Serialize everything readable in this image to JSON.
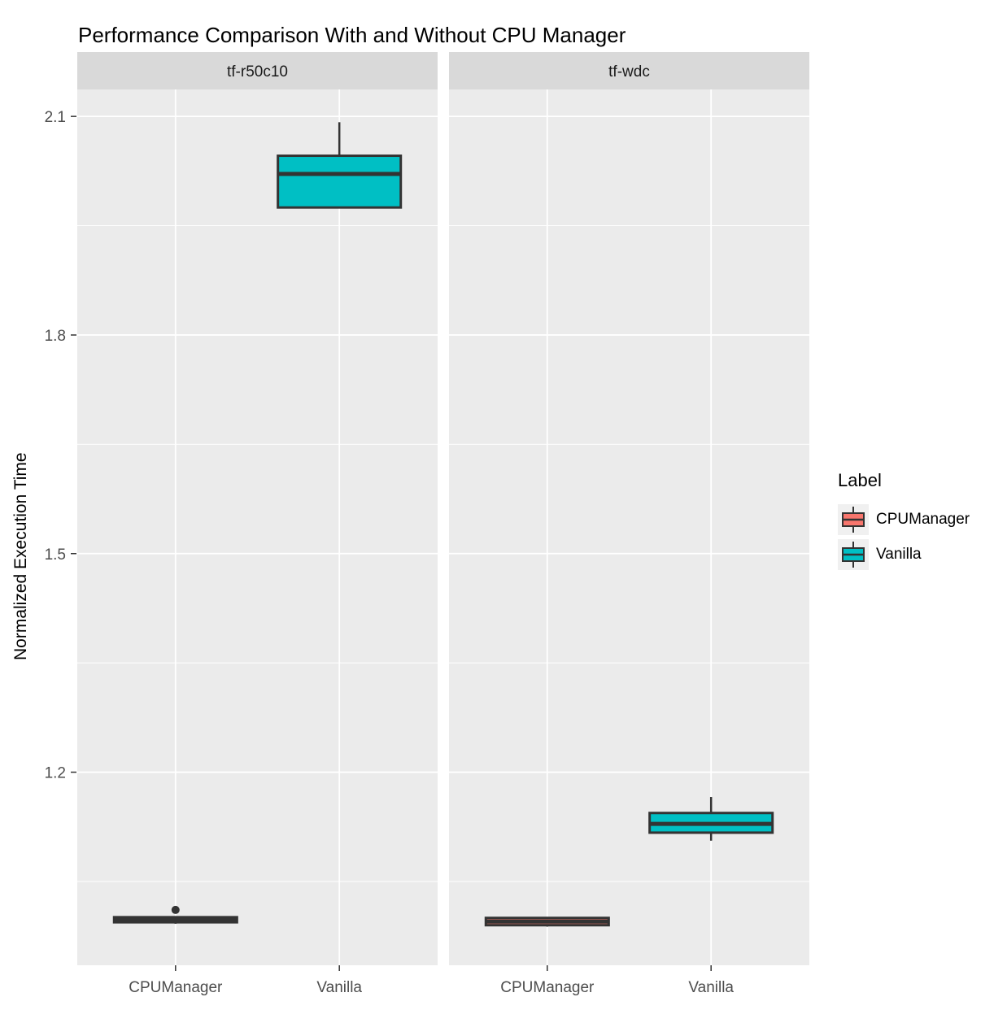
{
  "title": "Performance Comparison With and Without CPU Manager",
  "y_axis": {
    "title": "Normalized Execution Time",
    "tick_labels": [
      "2.1",
      "1.8",
      "1.5",
      "1.2"
    ],
    "tick_values": [
      2.1,
      1.8,
      1.5,
      1.2
    ],
    "minor_tick_values": [
      1.05,
      1.35,
      1.65,
      1.95
    ],
    "range": [
      0.935,
      2.137
    ]
  },
  "x_axis": {
    "categories": [
      "CPUManager",
      "Vanilla"
    ]
  },
  "legend": {
    "title": "Label",
    "items": [
      {
        "label": "CPUManager",
        "color": "#F8766D"
      },
      {
        "label": "Vanilla",
        "color": "#00BFC4"
      }
    ]
  },
  "colors": {
    "panel_background": "#EBEBEB",
    "strip_background": "#D9D9D9",
    "gridline": "#FFFFFF",
    "box_outline": "#333333",
    "tick_text": "#4D4D4D",
    "strip_text": "#1A1A1A",
    "cpumanager_fill": "#F8766D",
    "vanilla_fill": "#00BFC4"
  },
  "chart_data": {
    "type": "boxplot",
    "title": "Performance Comparison With and Without CPU Manager",
    "xlabel": "",
    "ylabel": "Normalized Execution Time",
    "ylim": [
      0.935,
      2.137
    ],
    "y_major_ticks": [
      1.2,
      1.5,
      1.8,
      2.1
    ],
    "y_minor_ticks": [
      1.05,
      1.35,
      1.65,
      1.95
    ],
    "legend_title": "Label",
    "legend_position": "right",
    "grid": true,
    "facets": [
      {
        "label": "tf-r50c10",
        "boxes": [
          {
            "category": "CPUManager",
            "series": "CPUManager",
            "min": 0.992,
            "q1": 0.994,
            "median": 0.997,
            "q3": 1.001,
            "max": 1.002,
            "outliers": [
              1.011
            ]
          },
          {
            "category": "Vanilla",
            "series": "Vanilla",
            "min": 1.975,
            "q1": 1.975,
            "median": 2.021,
            "q3": 2.046,
            "max": 2.092,
            "outliers": []
          }
        ]
      },
      {
        "label": "tf-wdc",
        "boxes": [
          {
            "category": "CPUManager",
            "series": "CPUManager",
            "min": 0.988,
            "q1": 0.99,
            "median": 0.995,
            "q3": 1.0,
            "max": 1.001,
            "outliers": []
          },
          {
            "category": "Vanilla",
            "series": "Vanilla",
            "min": 1.106,
            "q1": 1.117,
            "median": 1.129,
            "q3": 1.144,
            "max": 1.166,
            "outliers": []
          }
        ]
      }
    ]
  }
}
